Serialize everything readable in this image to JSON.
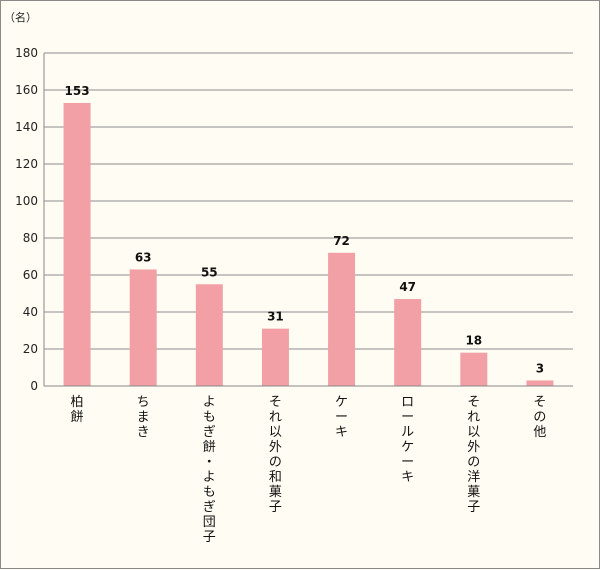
{
  "chart_data": {
    "type": "bar",
    "unit": "（名）",
    "categories": [
      "柏餅",
      "ちまき",
      "よもぎ餅・よもぎ団子",
      "それ以外の和菓子",
      "ケーキ",
      "ロールケーキ",
      "それ以外の洋菓子",
      "その他"
    ],
    "values": [
      153,
      63,
      55,
      31,
      72,
      47,
      18,
      3
    ],
    "ylim": [
      0,
      180
    ],
    "yticks": [
      0,
      20,
      40,
      60,
      80,
      100,
      120,
      140,
      160,
      180
    ],
    "grid": true,
    "bar_color": "#f2a0a5",
    "title": "",
    "xlabel": "",
    "ylabel": ""
  }
}
